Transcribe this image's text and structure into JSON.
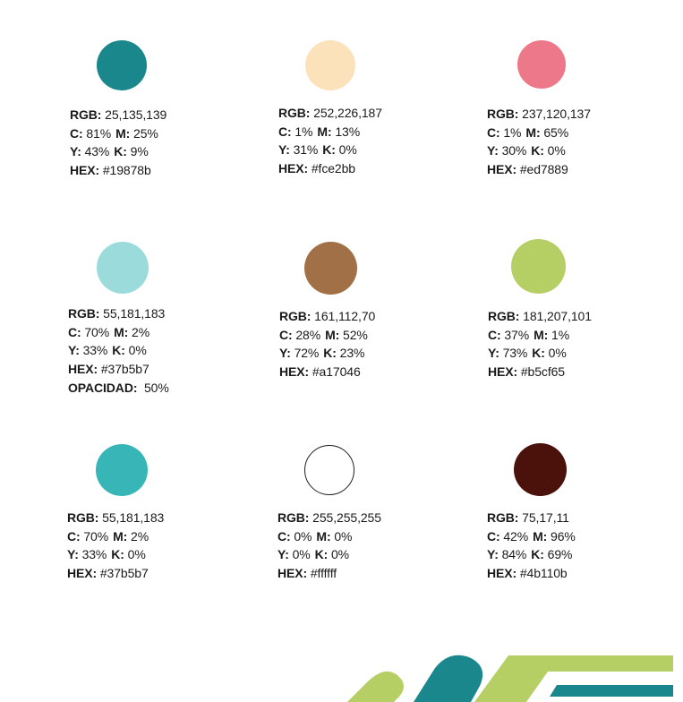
{
  "labels": {
    "rgb": "RGB:",
    "c": "C:",
    "m": "M:",
    "y": "Y:",
    "k": "K:",
    "hex": "HEX:",
    "opacity": "OPACIDAD:"
  },
  "swatches": [
    {
      "id": "teal-dark",
      "color": "#19878b",
      "rgb": "25,135,139",
      "c": "81%",
      "m": "25%",
      "y": "43%",
      "k": "9%",
      "hex": "#19878b"
    },
    {
      "id": "cream",
      "color": "#fce2bb",
      "rgb": "252,226,187",
      "c": "1%",
      "m": "13%",
      "y": "31%",
      "k": "0%",
      "hex": "#fce2bb"
    },
    {
      "id": "pink",
      "color": "#ed7889",
      "rgb": "237,120,137",
      "c": "1%",
      "m": "65%",
      "y": "30%",
      "k": "0%",
      "hex": "#ed7889"
    },
    {
      "id": "teal-light-50",
      "color": "#9bdbdb",
      "rgb": "55,181,183",
      "c": "70%",
      "m": "2%",
      "y": "33%",
      "k": "0%",
      "hex": "#37b5b7",
      "opacity": "50%"
    },
    {
      "id": "brown",
      "color": "#a17046",
      "rgb": "161,112,70",
      "c": "28%",
      "m": "52%",
      "y": "72%",
      "k": "23%",
      "hex": "#a17046"
    },
    {
      "id": "lime",
      "color": "#b5cf65",
      "rgb": "181,207,101",
      "c": "37%",
      "m": "1%",
      "y": "73%",
      "k": "0%",
      "hex": "#b5cf65"
    },
    {
      "id": "teal-light",
      "color": "#37b5b7",
      "rgb": "55,181,183",
      "c": "70%",
      "m": "2%",
      "y": "33%",
      "k": "0%",
      "hex": "#37b5b7"
    },
    {
      "id": "white",
      "color": "#ffffff",
      "rgb": "255,255,255",
      "c": "0%",
      "m": "0%",
      "y": "0%",
      "k": "0%",
      "hex": "#ffffff"
    },
    {
      "id": "maroon",
      "color": "#4b110b",
      "rgb": "75,17,11",
      "c": "42%",
      "m": "96%",
      "y": "84%",
      "k": "69%",
      "hex": "#4b110b"
    }
  ],
  "decor_colors": {
    "lime": "#b5cf65",
    "teal": "#19878b"
  }
}
